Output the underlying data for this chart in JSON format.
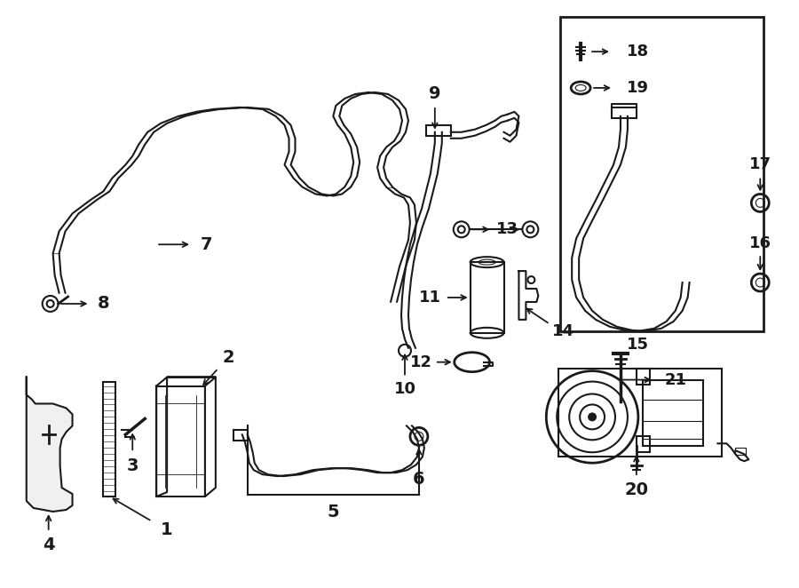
{
  "bg_color": "#ffffff",
  "line_color": "#1a1a1a",
  "fig_width": 9.0,
  "fig_height": 6.62,
  "dpi": 100,
  "xmax": 900,
  "ymax": 662
}
